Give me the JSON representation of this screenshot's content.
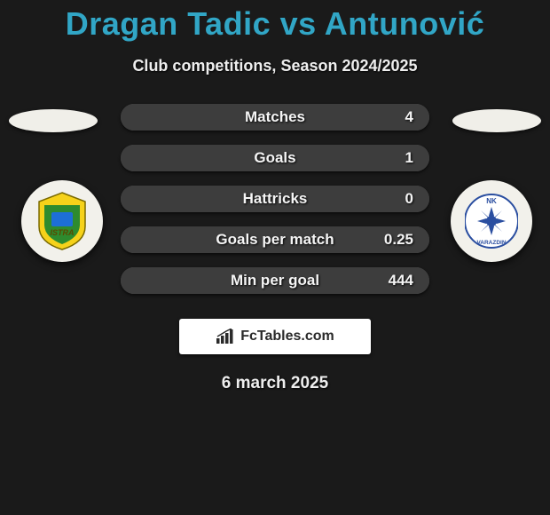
{
  "background_color": "#1a1a1a",
  "title": {
    "text": "Dragan Tadic vs Antunović",
    "color": "#31a6c6",
    "fontsize": 36
  },
  "subtitle": {
    "text": "Club competitions, Season 2024/2025",
    "color": "#eeeeee",
    "fontsize": 18
  },
  "left_ellipse_color": "#f0efe9",
  "right_ellipse_color": "#f0efe9",
  "left_badge": {
    "bg": "#f2f1eb",
    "crest_primary": "#f6d21a",
    "crest_secondary": "#2e8b2e",
    "crest_accent": "#1d6fd6",
    "label": "ISTRA"
  },
  "right_badge": {
    "bg": "#f2f1eb",
    "crest_primary": "#2a4ea0",
    "crest_secondary": "#ffffff",
    "label_top": "NK",
    "label_bottom": "VARAZDIN"
  },
  "stats": {
    "row_bg": "#525252",
    "fill_bg": "#3d3d3d",
    "text_color": "#f5f5f5",
    "fontsize": 17,
    "rows": [
      {
        "label": "Matches",
        "value_right": "4",
        "fill_percent": 100
      },
      {
        "label": "Goals",
        "value_right": "1",
        "fill_percent": 100
      },
      {
        "label": "Hattricks",
        "value_right": "0",
        "fill_percent": 100
      },
      {
        "label": "Goals per match",
        "value_right": "0.25",
        "fill_percent": 100
      },
      {
        "label": "Min per goal",
        "value_right": "444",
        "fill_percent": 100
      }
    ]
  },
  "brand": {
    "box_bg": "#ffffff",
    "text": "FcTables.com",
    "text_color": "#2a2a2a",
    "icon_color": "#2a2a2a"
  },
  "date": {
    "text": "6 march 2025",
    "color": "#eeeeee",
    "fontsize": 19
  }
}
